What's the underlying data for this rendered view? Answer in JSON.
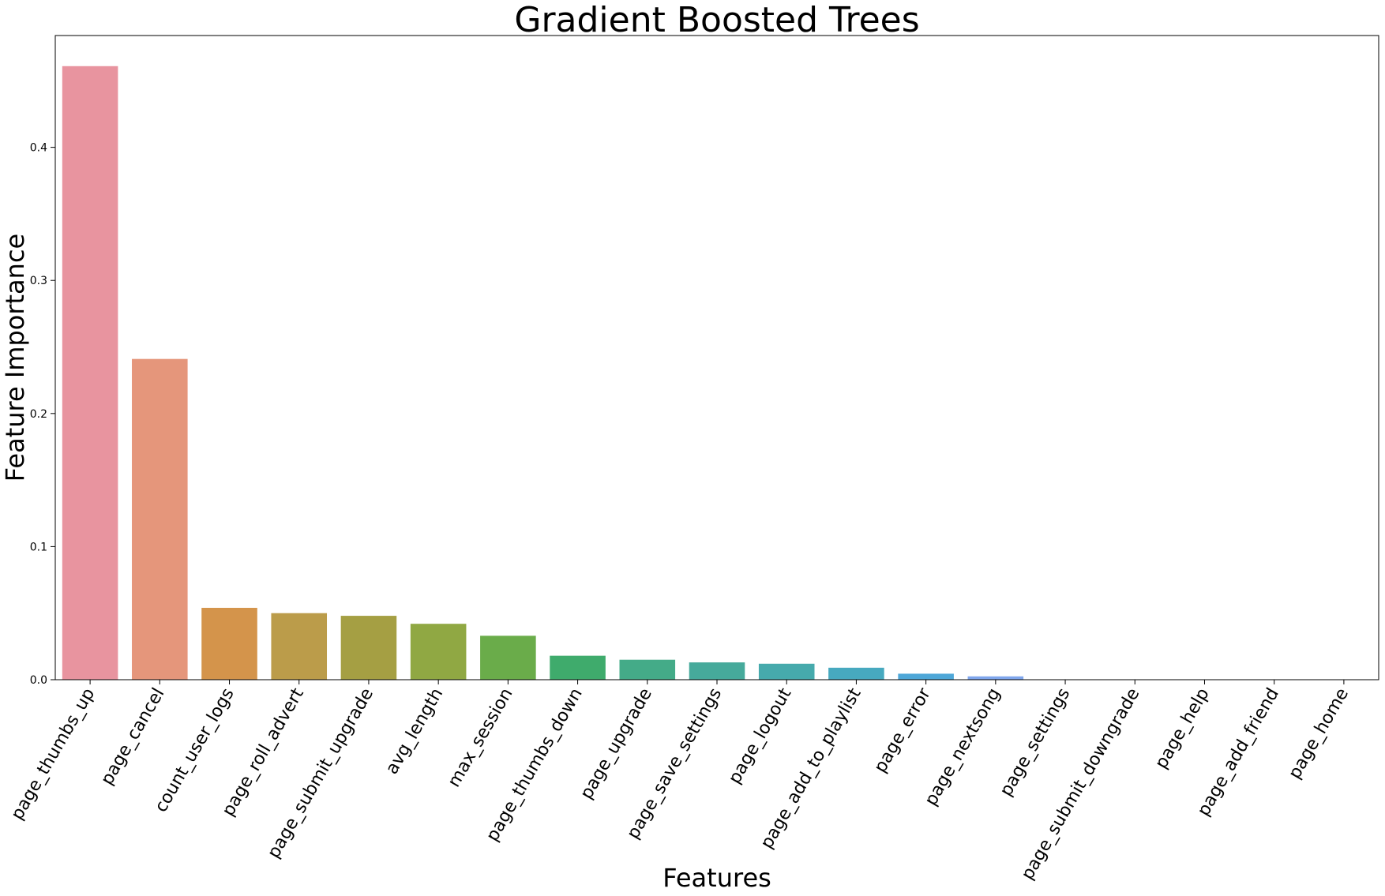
{
  "chart_data": {
    "type": "bar",
    "title": "Gradient Boosted Trees",
    "xlabel": "Features",
    "ylabel": "Feature Importance",
    "ylim": [
      0,
      0.484
    ],
    "yticks": [
      0.0,
      0.1,
      0.2,
      0.3,
      0.4
    ],
    "ytick_labels": [
      "0.0",
      "0.1",
      "0.2",
      "0.3",
      "0.4"
    ],
    "grid": false,
    "categories": [
      "page_thumbs_up",
      "page_cancel",
      "count_user_logs",
      "page_roll_advert",
      "page_submit_upgrade",
      "avg_length",
      "max_session",
      "page_thumbs_down",
      "page_upgrade",
      "page_save_settings",
      "page_logout",
      "page_add_to_playlist",
      "page_error",
      "page_nextsong",
      "page_settings",
      "page_submit_downgrade",
      "page_help",
      "page_add_friend",
      "page_home"
    ],
    "values": [
      0.461,
      0.241,
      0.054,
      0.05,
      0.048,
      0.042,
      0.033,
      0.018,
      0.015,
      0.013,
      0.012,
      0.009,
      0.0045,
      0.0025,
      0,
      0,
      0,
      0,
      0
    ],
    "colors": [
      "#e8949f",
      "#e5967b",
      "#d4944b",
      "#bb9c4a",
      "#a59f43",
      "#90a843",
      "#6aac4a",
      "#3fab6c",
      "#44ab88",
      "#46aa9b",
      "#46aaac",
      "#47a9bf",
      "#4ea7d8",
      "#7fa6ec",
      "#a79ee8",
      "#c792ea",
      "#e28ce0",
      "#ea8cc8",
      "#ea8eb2"
    ]
  }
}
